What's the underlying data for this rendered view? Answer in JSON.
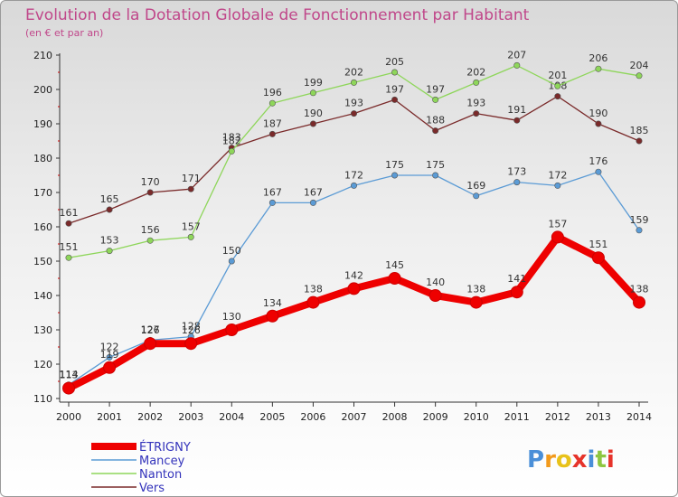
{
  "chart_data": {
    "type": "line",
    "title": "Evolution de la Dotation Globale de Fonctionnement par Habitant",
    "subtitle": "(en € et par an)",
    "x": [
      "2000",
      "2001",
      "2002",
      "2003",
      "2004",
      "2005",
      "2006",
      "2007",
      "2008",
      "2009",
      "2010",
      "2011",
      "2012",
      "2013",
      "2014"
    ],
    "yticks": [
      110,
      120,
      130,
      140,
      150,
      160,
      170,
      180,
      190,
      200,
      210
    ],
    "ylim": [
      110,
      210
    ],
    "grid": false,
    "legend_position": "bottom-left",
    "series": [
      {
        "name": "ÉTRIGNY",
        "color": "#ee0000",
        "values": [
          113,
          119,
          126,
          126,
          130,
          134,
          138,
          142,
          145,
          140,
          138,
          141,
          157,
          151,
          138
        ],
        "labels": [
          "113",
          "119",
          "126",
          "126",
          "130",
          "134",
          "138",
          "142",
          "145",
          "140",
          "138",
          "141",
          "157",
          "151",
          "138"
        ]
      },
      {
        "name": "Mancey",
        "color": "#5b9bd5",
        "values": [
          114,
          122,
          127,
          128,
          150,
          167,
          167,
          172,
          175,
          175,
          169,
          173,
          172,
          176,
          159
        ],
        "labels": [
          "114",
          "122",
          "127",
          "128",
          "150",
          "167",
          "167",
          "172",
          "175",
          "175",
          "169",
          "173",
          "172",
          "176",
          "159"
        ]
      },
      {
        "name": "Nanton",
        "color": "#8ed65a",
        "values": [
          151,
          153,
          156,
          157,
          182,
          196,
          199,
          202,
          205,
          197,
          202,
          207,
          201,
          206,
          204
        ],
        "labels": [
          "151",
          "153",
          "156",
          "157",
          "182",
          "196",
          "199",
          "202",
          "205",
          "197",
          "202",
          "207",
          "201",
          "206",
          "204"
        ]
      },
      {
        "name": "Vers",
        "color": "#7a2a2a",
        "values": [
          161,
          165,
          170,
          171,
          183,
          187,
          190,
          193,
          197,
          188,
          193,
          191,
          198,
          190,
          185
        ],
        "labels": [
          "161",
          "165",
          "170",
          "171",
          "183",
          "187",
          "190",
          "193",
          "197",
          "188",
          "193",
          "191",
          "198",
          "190",
          "185"
        ]
      }
    ]
  },
  "logo": {
    "text": "Proxiti",
    "letter_colors": [
      "#4a8fd8",
      "#f29a1c",
      "#e8c21a",
      "#e6332a",
      "#4a8fd8",
      "#8ec641",
      "#e6332a"
    ]
  }
}
